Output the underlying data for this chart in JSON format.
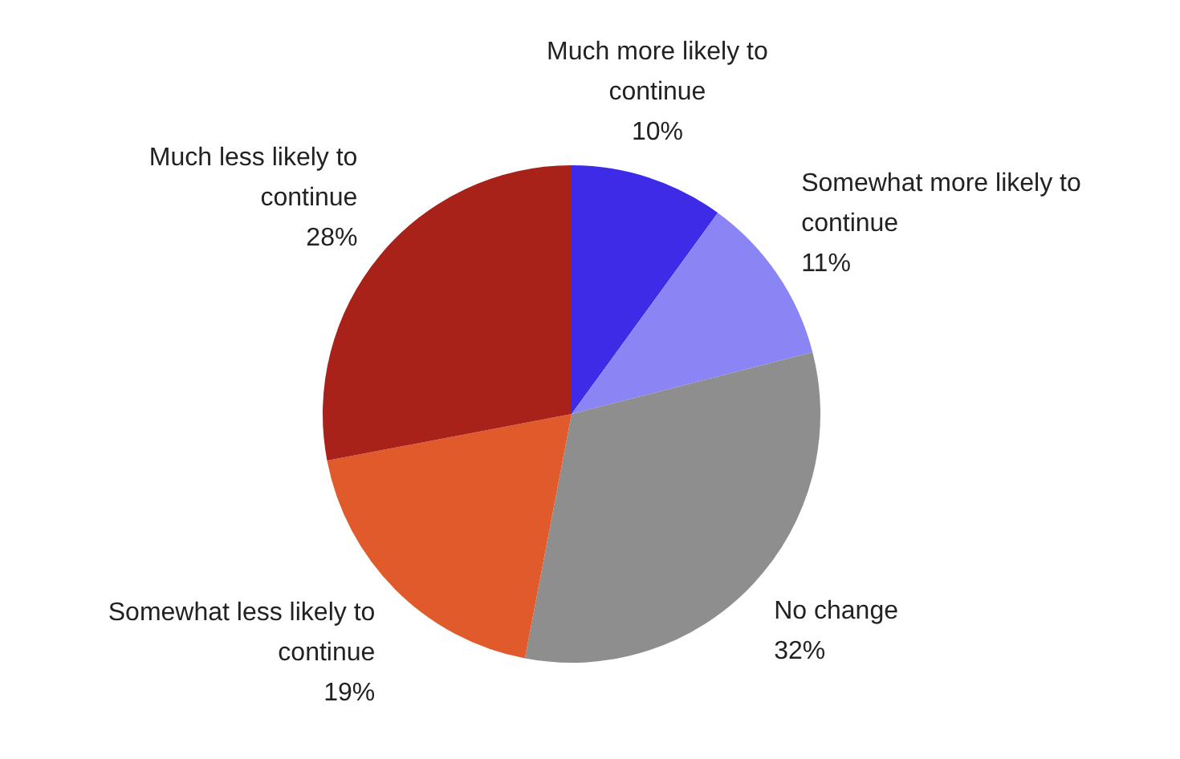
{
  "chart_data": {
    "type": "pie",
    "categories": [
      "Much more likely to continue",
      "Somewhat more likely to continue",
      "No change",
      "Somewhat less likely to continue",
      "Much less likely to continue"
    ],
    "values": [
      10,
      11,
      32,
      19,
      28
    ],
    "value_labels": [
      "10%",
      "11%",
      "32%",
      "19%",
      "28%"
    ],
    "colors": [
      "#3d2be8",
      "#8b84f5",
      "#8e8e8e",
      "#e05a2b",
      "#a8221a"
    ],
    "legend": false
  }
}
